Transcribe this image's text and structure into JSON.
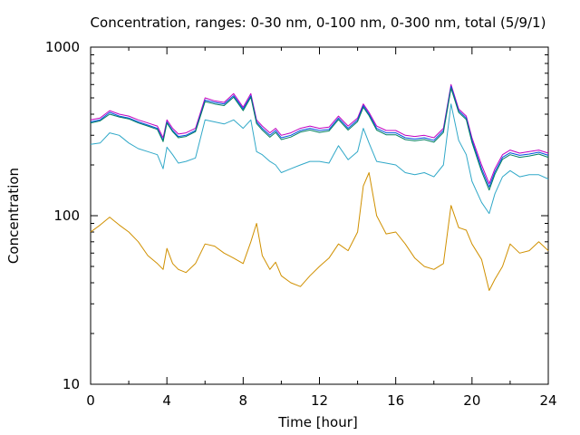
{
  "chart_data": {
    "type": "line",
    "title": "Concentration, ranges: 0-30 nm, 0-100 nm, 0-300 nm, total (5/9/1)",
    "xlabel": "Time [hour]",
    "ylabel": "Concentration",
    "xlim": [
      0,
      24
    ],
    "ylim": [
      10,
      1000
    ],
    "yscale": "log",
    "grid": false,
    "xticks": [
      0,
      4,
      8,
      12,
      16,
      20,
      24
    ],
    "yticks": [
      10,
      100,
      1000
    ],
    "x": [
      0,
      0.5,
      1,
      1.5,
      2,
      2.5,
      3,
      3.5,
      3.8,
      4,
      4.3,
      4.6,
      5,
      5.5,
      6,
      6.5,
      7,
      7.5,
      8,
      8.4,
      8.7,
      9,
      9.4,
      9.7,
      10,
      10.5,
      11,
      11.5,
      12,
      12.5,
      13,
      13.5,
      14,
      14.3,
      14.6,
      15,
      15.5,
      16,
      16.5,
      17,
      17.5,
      18,
      18.5,
      18.9,
      19.3,
      19.7,
      20,
      20.5,
      20.9,
      21.2,
      21.6,
      22,
      22.5,
      23,
      23.5,
      24
    ],
    "series": [
      {
        "color": "#c000c0",
        "values": [
          370,
          380,
          420,
          400,
          390,
          370,
          355,
          340,
          290,
          370,
          330,
          305,
          310,
          330,
          500,
          480,
          470,
          530,
          440,
          530,
          370,
          340,
          310,
          330,
          300,
          310,
          330,
          340,
          330,
          335,
          390,
          340,
          380,
          460,
          410,
          340,
          320,
          320,
          300,
          295,
          300,
          290,
          330,
          600,
          430,
          390,
          290,
          200,
          155,
          190,
          230,
          245,
          235,
          240,
          245,
          235
        ]
      },
      {
        "color": "#0050e0",
        "values": [
          360,
          370,
          410,
          390,
          380,
          360,
          345,
          330,
          280,
          360,
          320,
          295,
          300,
          320,
          485,
          470,
          460,
          515,
          430,
          515,
          360,
          330,
          300,
          320,
          290,
          300,
          320,
          330,
          320,
          325,
          380,
          330,
          370,
          450,
          400,
          330,
          310,
          310,
          290,
          285,
          290,
          280,
          320,
          585,
          420,
          380,
          280,
          190,
          148,
          182,
          222,
          236,
          228,
          232,
          238,
          228
        ]
      },
      {
        "color": "#008060",
        "values": [
          355,
          365,
          400,
          385,
          375,
          355,
          340,
          325,
          275,
          355,
          315,
          290,
          295,
          315,
          475,
          460,
          450,
          505,
          420,
          505,
          352,
          322,
          292,
          312,
          283,
          293,
          313,
          322,
          312,
          318,
          372,
          322,
          362,
          440,
          392,
          322,
          302,
          302,
          283,
          278,
          283,
          273,
          312,
          570,
          410,
          372,
          272,
          183,
          142,
          176,
          216,
          230,
          222,
          226,
          232,
          222
        ]
      },
      {
        "color": "#30a8c8",
        "values": [
          265,
          270,
          310,
          300,
          270,
          250,
          240,
          230,
          190,
          255,
          230,
          205,
          210,
          220,
          370,
          360,
          350,
          370,
          330,
          370,
          240,
          230,
          210,
          200,
          180,
          190,
          200,
          210,
          210,
          205,
          260,
          215,
          240,
          330,
          270,
          210,
          205,
          200,
          180,
          175,
          180,
          170,
          200,
          460,
          280,
          230,
          160,
          120,
          103,
          135,
          170,
          185,
          170,
          175,
          175,
          165
        ]
      },
      {
        "color": "#d09000",
        "values": [
          80,
          88,
          98,
          88,
          80,
          70,
          58,
          52,
          48,
          64,
          52,
          48,
          46,
          52,
          68,
          66,
          60,
          56,
          52,
          70,
          90,
          58,
          48,
          53,
          44,
          40,
          38,
          44,
          50,
          56,
          68,
          62,
          80,
          150,
          180,
          100,
          78,
          80,
          68,
          56,
          50,
          48,
          52,
          115,
          85,
          82,
          68,
          55,
          36,
          42,
          50,
          68,
          60,
          62,
          70,
          62
        ]
      }
    ]
  }
}
